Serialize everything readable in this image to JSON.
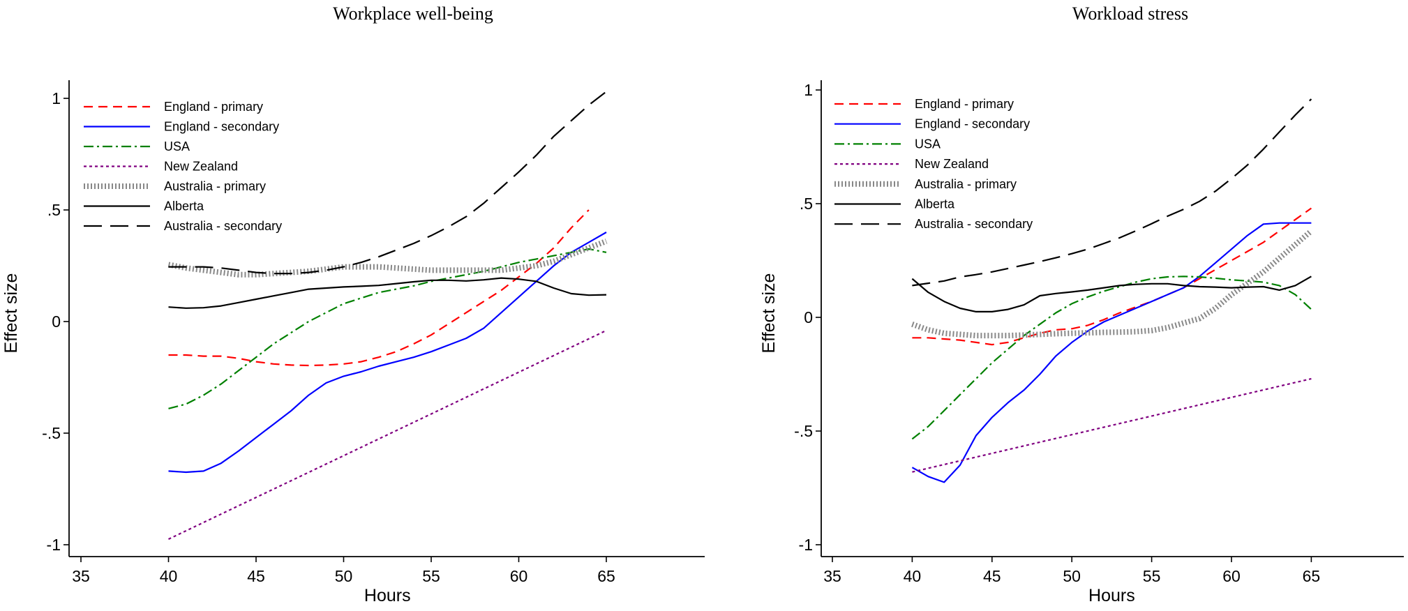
{
  "chart_data": [
    {
      "type": "line",
      "title": "Workplace well-being",
      "xlabel": "Hours",
      "ylabel": "Effect size",
      "xlim": [
        35,
        70
      ],
      "ylim": [
        -1.05,
        1.1
      ],
      "xticks": [
        35,
        40,
        45,
        50,
        55,
        60,
        65
      ],
      "yticks": [
        1,
        0.5,
        0,
        -0.5,
        -1
      ],
      "ytick_labels": [
        "1",
        ".5",
        "0",
        "-.5",
        "-1"
      ],
      "legend_position": "top-left",
      "series": [
        {
          "name": "England - primary",
          "color": "#ff0000",
          "style": "medium-dash",
          "x": [
            40,
            41,
            42,
            43,
            44,
            45,
            46,
            47,
            48,
            49,
            50,
            51,
            52,
            53,
            54,
            55,
            56,
            57,
            58,
            59,
            60,
            61,
            62,
            63,
            64
          ],
          "y": [
            -0.15,
            -0.15,
            -0.155,
            -0.155,
            -0.165,
            -0.18,
            -0.19,
            -0.195,
            -0.197,
            -0.195,
            -0.19,
            -0.18,
            -0.16,
            -0.135,
            -0.1,
            -0.06,
            -0.01,
            0.04,
            0.09,
            0.14,
            0.2,
            0.26,
            0.33,
            0.42,
            0.5
          ]
        },
        {
          "name": "England - secondary",
          "color": "#0000ff",
          "style": "solid",
          "x": [
            40,
            41,
            42,
            43,
            44,
            45,
            46,
            47,
            48,
            49,
            50,
            51,
            52,
            53,
            54,
            55,
            56,
            57,
            58,
            59,
            60,
            61,
            62,
            63,
            64,
            65
          ],
          "y": [
            -0.67,
            -0.675,
            -0.67,
            -0.635,
            -0.58,
            -0.52,
            -0.46,
            -0.4,
            -0.33,
            -0.275,
            -0.245,
            -0.225,
            -0.2,
            -0.18,
            -0.16,
            -0.135,
            -0.105,
            -0.075,
            -0.03,
            0.04,
            0.11,
            0.18,
            0.25,
            0.31,
            0.355,
            0.4
          ]
        },
        {
          "name": "USA",
          "color": "#008000",
          "style": "dash-dot",
          "x": [
            40,
            41,
            42,
            43,
            44,
            45,
            46,
            47,
            48,
            49,
            50,
            51,
            52,
            53,
            54,
            55,
            56,
            57,
            58,
            59,
            60,
            61,
            62,
            63,
            64,
            65
          ],
          "y": [
            -0.39,
            -0.37,
            -0.33,
            -0.28,
            -0.22,
            -0.16,
            -0.1,
            -0.05,
            0.0,
            0.04,
            0.08,
            0.105,
            0.13,
            0.145,
            0.16,
            0.18,
            0.195,
            0.21,
            0.225,
            0.245,
            0.265,
            0.28,
            0.295,
            0.31,
            0.325,
            0.31
          ]
        },
        {
          "name": "New Zealand",
          "color": "#800080",
          "style": "short-dash",
          "x": [
            40,
            65
          ],
          "y": [
            -0.975,
            -0.04
          ]
        },
        {
          "name": "Australia - primary",
          "color": "#888888",
          "style": "dotted-thick",
          "x": [
            40,
            41,
            42,
            43,
            44,
            45,
            46,
            47,
            48,
            49,
            50,
            51,
            52,
            53,
            54,
            55,
            56,
            57,
            58,
            59,
            60,
            61,
            62,
            63,
            64,
            65
          ],
          "y": [
            0.255,
            0.24,
            0.23,
            0.22,
            0.21,
            0.21,
            0.215,
            0.22,
            0.225,
            0.235,
            0.245,
            0.245,
            0.245,
            0.24,
            0.235,
            0.23,
            0.23,
            0.23,
            0.23,
            0.23,
            0.24,
            0.25,
            0.27,
            0.3,
            0.33,
            0.36
          ]
        },
        {
          "name": "Alberta",
          "color": "#000000",
          "style": "solid",
          "x": [
            40,
            41,
            42,
            43,
            44,
            45,
            46,
            47,
            48,
            49,
            50,
            51,
            52,
            53,
            54,
            55,
            56,
            57,
            58,
            59,
            60,
            61,
            62,
            63,
            64,
            65
          ],
          "y": [
            0.065,
            0.06,
            0.062,
            0.07,
            0.085,
            0.1,
            0.115,
            0.13,
            0.145,
            0.15,
            0.155,
            0.158,
            0.162,
            0.17,
            0.178,
            0.185,
            0.185,
            0.182,
            0.187,
            0.195,
            0.19,
            0.18,
            0.15,
            0.125,
            0.118,
            0.12
          ]
        },
        {
          "name": "Australia - secondary",
          "color": "#000000",
          "style": "long-dash",
          "x": [
            40,
            41,
            42,
            43,
            44,
            45,
            46,
            47,
            48,
            49,
            50,
            51,
            52,
            53,
            54,
            55,
            56,
            57,
            58,
            59,
            60,
            61,
            62,
            63,
            64,
            65
          ],
          "y": [
            0.245,
            0.245,
            0.245,
            0.24,
            0.23,
            0.22,
            0.215,
            0.215,
            0.22,
            0.23,
            0.245,
            0.265,
            0.29,
            0.32,
            0.35,
            0.385,
            0.425,
            0.47,
            0.53,
            0.6,
            0.67,
            0.745,
            0.83,
            0.9,
            0.97,
            1.03
          ]
        }
      ]
    },
    {
      "type": "line",
      "title": "Workload stress",
      "xlabel": "Hours",
      "ylabel": "Effect size",
      "xlim": [
        35,
        70
      ],
      "ylim": [
        -1.05,
        1.05
      ],
      "xticks": [
        35,
        40,
        45,
        50,
        55,
        60,
        65
      ],
      "yticks": [
        1,
        0.5,
        0,
        -0.5,
        -1
      ],
      "ytick_labels": [
        "1",
        ".5",
        "0",
        "-.5",
        "-1"
      ],
      "legend_position": "top-left",
      "series": [
        {
          "name": "England - primary",
          "color": "#ff0000",
          "style": "medium-dash",
          "x": [
            40,
            41,
            42,
            43,
            44,
            45,
            46,
            47,
            48,
            49,
            50,
            51,
            52,
            53,
            54,
            55,
            56,
            57,
            58,
            59,
            60,
            61,
            62,
            63,
            64,
            65
          ],
          "y": [
            -0.09,
            -0.09,
            -0.095,
            -0.1,
            -0.11,
            -0.12,
            -0.11,
            -0.09,
            -0.07,
            -0.055,
            -0.05,
            -0.035,
            -0.01,
            0.02,
            0.045,
            0.07,
            0.1,
            0.13,
            0.17,
            0.21,
            0.25,
            0.29,
            0.33,
            0.38,
            0.43,
            0.48
          ]
        },
        {
          "name": "England - secondary",
          "color": "#0000ff",
          "style": "solid",
          "x": [
            40,
            41,
            42,
            43,
            44,
            45,
            46,
            47,
            48,
            49,
            50,
            51,
            52,
            53,
            54,
            55,
            56,
            57,
            58,
            59,
            60,
            61,
            62,
            63,
            64,
            65
          ],
          "y": [
            -0.66,
            -0.7,
            -0.725,
            -0.65,
            -0.52,
            -0.44,
            -0.375,
            -0.32,
            -0.25,
            -0.17,
            -0.11,
            -0.06,
            -0.02,
            0.01,
            0.04,
            0.07,
            0.1,
            0.13,
            0.18,
            0.24,
            0.3,
            0.36,
            0.41,
            0.415,
            0.415,
            0.415
          ]
        },
        {
          "name": "USA",
          "color": "#008000",
          "style": "dash-dot",
          "x": [
            40,
            41,
            42,
            43,
            44,
            45,
            46,
            47,
            48,
            49,
            50,
            51,
            52,
            53,
            54,
            55,
            56,
            57,
            58,
            59,
            60,
            61,
            62,
            63,
            64,
            65
          ],
          "y": [
            -0.535,
            -0.48,
            -0.41,
            -0.34,
            -0.27,
            -0.2,
            -0.14,
            -0.08,
            -0.03,
            0.02,
            0.06,
            0.09,
            0.115,
            0.135,
            0.155,
            0.17,
            0.178,
            0.18,
            0.178,
            0.172,
            0.165,
            0.16,
            0.155,
            0.14,
            0.1,
            0.035
          ]
        },
        {
          "name": "New Zealand",
          "color": "#800080",
          "style": "short-dash",
          "x": [
            40,
            65
          ],
          "y": [
            -0.68,
            -0.27
          ]
        },
        {
          "name": "Australia - primary",
          "color": "#888888",
          "style": "dotted-thick",
          "x": [
            40,
            41,
            42,
            43,
            44,
            45,
            46,
            47,
            48,
            49,
            50,
            51,
            52,
            53,
            54,
            55,
            56,
            57,
            58,
            59,
            60,
            61,
            62,
            63,
            64,
            65
          ],
          "y": [
            -0.03,
            -0.055,
            -0.07,
            -0.075,
            -0.08,
            -0.08,
            -0.08,
            -0.078,
            -0.075,
            -0.072,
            -0.07,
            -0.068,
            -0.066,
            -0.065,
            -0.063,
            -0.058,
            -0.045,
            -0.025,
            -0.005,
            0.04,
            0.1,
            0.15,
            0.2,
            0.26,
            0.32,
            0.38
          ]
        },
        {
          "name": "Alberta",
          "color": "#000000",
          "style": "solid",
          "x": [
            40,
            41,
            42,
            43,
            44,
            45,
            46,
            47,
            48,
            49,
            50,
            51,
            52,
            53,
            54,
            55,
            56,
            57,
            58,
            59,
            60,
            61,
            62,
            63,
            64,
            65
          ],
          "y": [
            0.17,
            0.11,
            0.07,
            0.04,
            0.025,
            0.025,
            0.035,
            0.055,
            0.095,
            0.105,
            0.112,
            0.12,
            0.13,
            0.14,
            0.145,
            0.148,
            0.148,
            0.14,
            0.135,
            0.133,
            0.13,
            0.133,
            0.135,
            0.12,
            0.14,
            0.18
          ]
        },
        {
          "name": "Australia - secondary",
          "color": "#000000",
          "style": "long-dash",
          "x": [
            40,
            41,
            42,
            43,
            44,
            45,
            46,
            47,
            48,
            49,
            50,
            51,
            52,
            53,
            54,
            55,
            56,
            57,
            58,
            59,
            60,
            61,
            62,
            63,
            64,
            65
          ],
          "y": [
            0.14,
            0.15,
            0.16,
            0.178,
            0.188,
            0.2,
            0.215,
            0.23,
            0.245,
            0.262,
            0.28,
            0.3,
            0.325,
            0.35,
            0.38,
            0.412,
            0.445,
            0.475,
            0.51,
            0.555,
            0.61,
            0.67,
            0.74,
            0.815,
            0.89,
            0.96
          ]
        }
      ]
    }
  ]
}
